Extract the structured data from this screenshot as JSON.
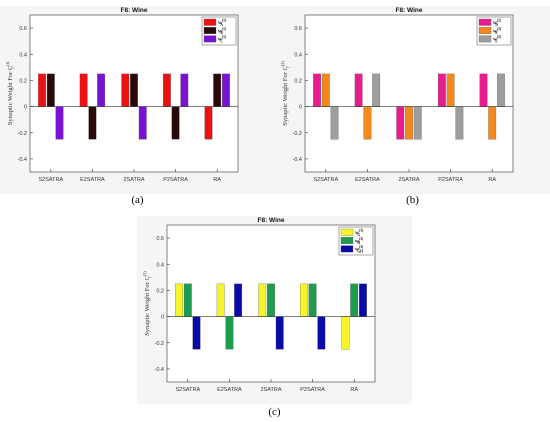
{
  "chart_data": [
    {
      "type": "bar",
      "panel_label": "(a)",
      "title": "F8: Wine",
      "ylabel": "Synaptic Weight For C_r^{(l)}",
      "ylim": [
        -0.5,
        0.7
      ],
      "yticks": [
        -0.4,
        -0.2,
        0,
        0.2,
        0.4,
        0.6
      ],
      "ytick_labels": [
        "-0.4",
        "-0.2",
        "0",
        "0.2",
        "0.4",
        "0.6"
      ],
      "categories": [
        "S2SATRA",
        "E2SATRA",
        "2SATRA",
        "P2SATRA",
        "RA"
      ],
      "grid": false,
      "legend_position": "top-right",
      "series": [
        {
          "name": "w_A^{(1)}",
          "color": "#ee1111",
          "values": [
            0.25,
            0.25,
            0.25,
            0.25,
            -0.25
          ]
        },
        {
          "name": "w_B^{(1)}",
          "color": "#2a0a08",
          "values": [
            0.25,
            -0.25,
            0.25,
            -0.25,
            0.25
          ]
        },
        {
          "name": "w_C^{(1)}",
          "color": "#7a12d6",
          "values": [
            -0.25,
            0.25,
            -0.25,
            0.25,
            0.25
          ]
        }
      ]
    },
    {
      "type": "bar",
      "panel_label": "(b)",
      "title": "F8: Wine",
      "ylabel": "Synaptic Weight For C_r^{(2)}",
      "ylim": [
        -0.5,
        0.7
      ],
      "yticks": [
        -0.4,
        -0.2,
        0,
        0.2,
        0.4,
        0.6
      ],
      "ytick_labels": [
        "-0.4",
        "-0.2",
        "0",
        "0.2",
        "0.4",
        "0.6"
      ],
      "categories": [
        "S2SATRA",
        "E2SATRA",
        "2SATRA",
        "P2SATRA",
        "RA"
      ],
      "grid": false,
      "legend_position": "top-right",
      "series": [
        {
          "name": "w_D^{(2)}",
          "color": "#e81c8c",
          "values": [
            0.25,
            0.25,
            -0.25,
            0.25,
            0.25
          ]
        },
        {
          "name": "w_E^{(2)}",
          "color": "#f2891c",
          "values": [
            0.25,
            -0.25,
            -0.25,
            0.25,
            -0.25
          ]
        },
        {
          "name": "w_F^{(2)}",
          "color": "#9e9e9e",
          "values": [
            -0.25,
            0.25,
            -0.25,
            -0.25,
            0.25
          ]
        }
      ]
    },
    {
      "type": "bar",
      "panel_label": "(c)",
      "title": "F8: Wine",
      "ylabel": "Synaptic Weight For C_r^{(3)}",
      "ylim": [
        -0.5,
        0.7
      ],
      "yticks": [
        -0.4,
        -0.2,
        0,
        0.2,
        0.4,
        0.6
      ],
      "ytick_labels": [
        "-0.4",
        "-0.2",
        "0",
        "0.2",
        "0.4",
        "0.6"
      ],
      "categories": [
        "S2SATRA",
        "E2SATRA",
        "2SATRA",
        "P2SATRA",
        "RA"
      ],
      "grid": false,
      "legend_position": "top-right",
      "series": [
        {
          "name": "w_G^{(3)}",
          "color": "#f5f52a",
          "values": [
            0.25,
            0.25,
            0.25,
            0.25,
            -0.25
          ]
        },
        {
          "name": "w_H^{(3)}",
          "color": "#1c9c4c",
          "values": [
            0.25,
            -0.25,
            0.25,
            0.25,
            0.25
          ]
        },
        {
          "name": "w_{GH}^{(3)}",
          "color": "#0a0aa8",
          "values": [
            -0.25,
            0.25,
            -0.25,
            -0.25,
            0.25
          ]
        }
      ]
    }
  ]
}
